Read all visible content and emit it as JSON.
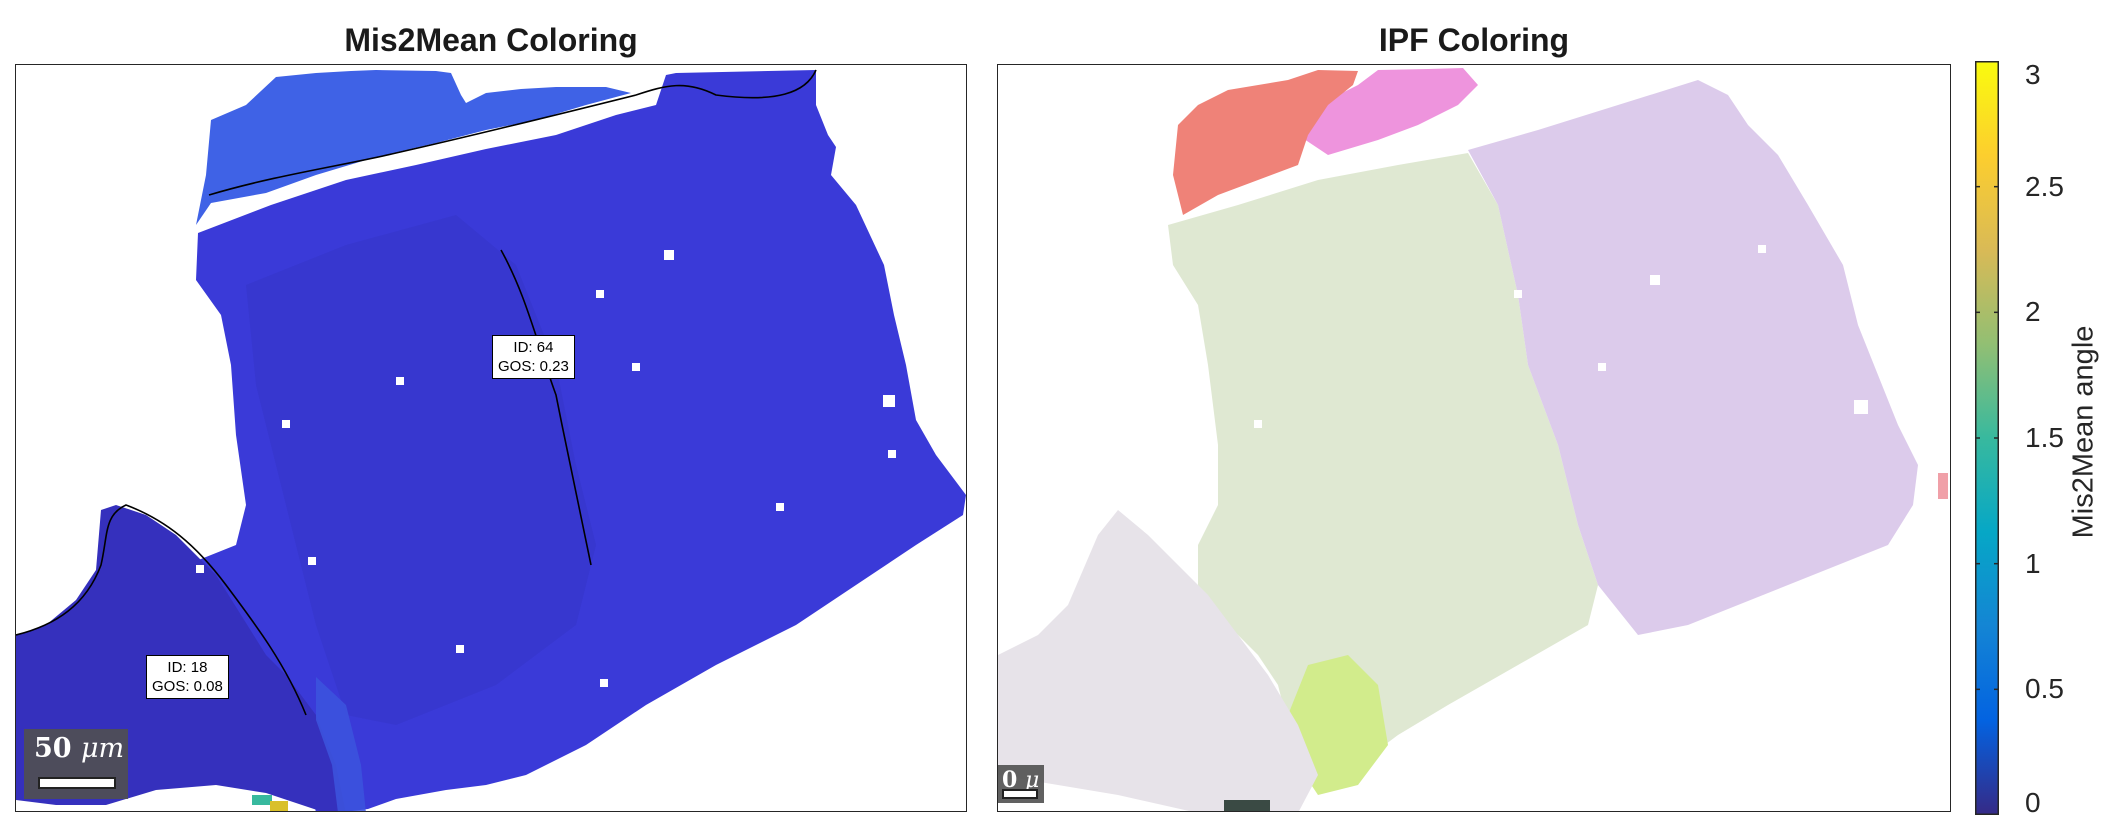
{
  "chart_data": [
    {
      "type": "heatmap",
      "title": "Mis2Mean Coloring",
      "colormap": "parula",
      "clim": [
        0,
        3
      ],
      "grains": [
        {
          "id": 64,
          "gos": 0.23,
          "label": "ID: 64\nGOS: 0.23",
          "id_text": "ID: 64",
          "gos_text": "GOS: 0.23",
          "mean_color": "#3a3ad8"
        },
        {
          "id": 18,
          "gos": 0.08,
          "label": "ID: 18\nGOS: 0.08",
          "id_text": "ID: 18",
          "gos_text": "GOS: 0.08",
          "mean_color": "#3530bd"
        }
      ],
      "scalebar": {
        "value": "50",
        "unit": "μm"
      }
    },
    {
      "type": "heatmap",
      "title": "IPF Coloring",
      "colormap": "ipf",
      "scalebar": {
        "value": "0",
        "unit": "μ"
      }
    }
  ],
  "colorbar": {
    "label": "Mis2Mean angle",
    "ticks": [
      "0",
      "0.5",
      "1",
      "1.5",
      "2",
      "2.5",
      "3"
    ],
    "range": [
      0,
      3
    ],
    "colors": [
      "#352a87",
      "#0363e1",
      "#1485d4",
      "#06a7c6",
      "#38b99e",
      "#92bf73",
      "#d9ba56",
      "#fcce2e",
      "#f9fb0e"
    ]
  },
  "colors": {
    "grain_64": "#3a3ad8",
    "grain_18": "#3530bd",
    "grain_top": "#3f62e6",
    "ipf_red": "#ef8278",
    "ipf_pink": "#ee94dd",
    "ipf_green": "#dfe8d2",
    "ipf_purple": "#dccbeb",
    "ipf_gray": "#e7e3e9",
    "ipf_yellowgreen": "#d2ec8c"
  }
}
